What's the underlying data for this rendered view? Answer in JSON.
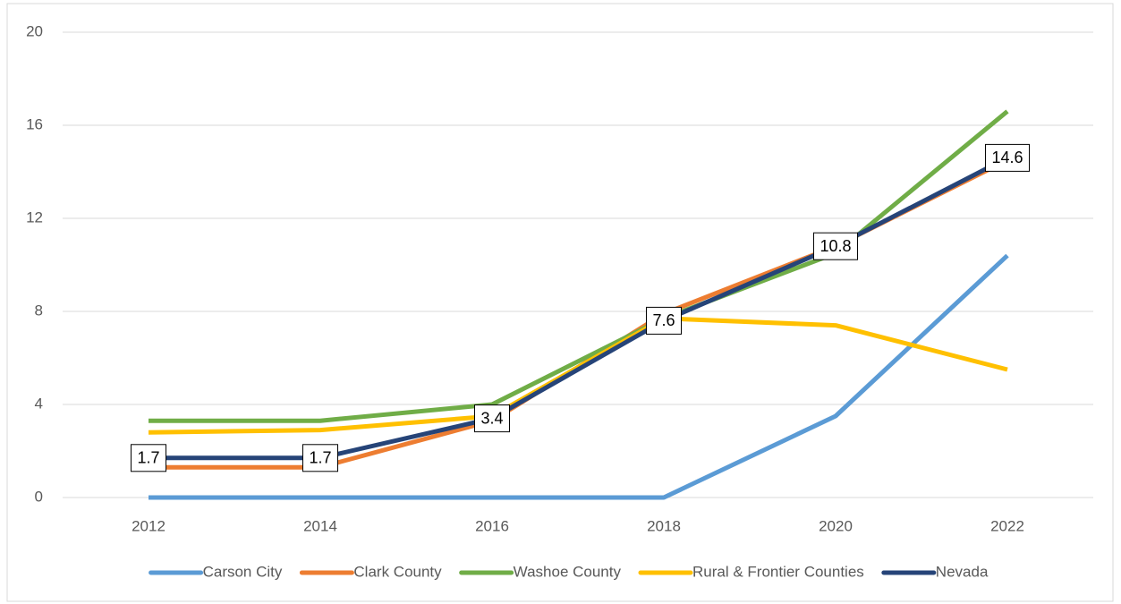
{
  "chart_data": {
    "type": "line",
    "categories": [
      "2012",
      "2014",
      "2016",
      "2018",
      "2020",
      "2022"
    ],
    "series": [
      {
        "name": "Carson City",
        "color": "#5b9bd5",
        "values": [
          0,
          0,
          0,
          0,
          3.5,
          10.4
        ]
      },
      {
        "name": "Clark County",
        "color": "#ed7d31",
        "values": [
          1.3,
          1.3,
          3.3,
          7.9,
          10.8,
          14.5
        ]
      },
      {
        "name": "Washoe County",
        "color": "#70ad47",
        "values": [
          3.3,
          3.3,
          4.0,
          7.7,
          10.5,
          16.6
        ]
      },
      {
        "name": "Rural & Frontier Counties",
        "color": "#ffc000",
        "values": [
          2.8,
          2.9,
          3.5,
          7.7,
          7.4,
          5.5
        ]
      },
      {
        "name": "Nevada",
        "color": "#264478",
        "values": [
          1.7,
          1.7,
          3.4,
          7.6,
          10.8,
          14.6
        ],
        "data_labels": true
      }
    ],
    "ylim": [
      0,
      20
    ],
    "yticks": [
      0,
      4,
      8,
      12,
      16,
      20
    ],
    "grid": true,
    "legend": "bottom"
  }
}
